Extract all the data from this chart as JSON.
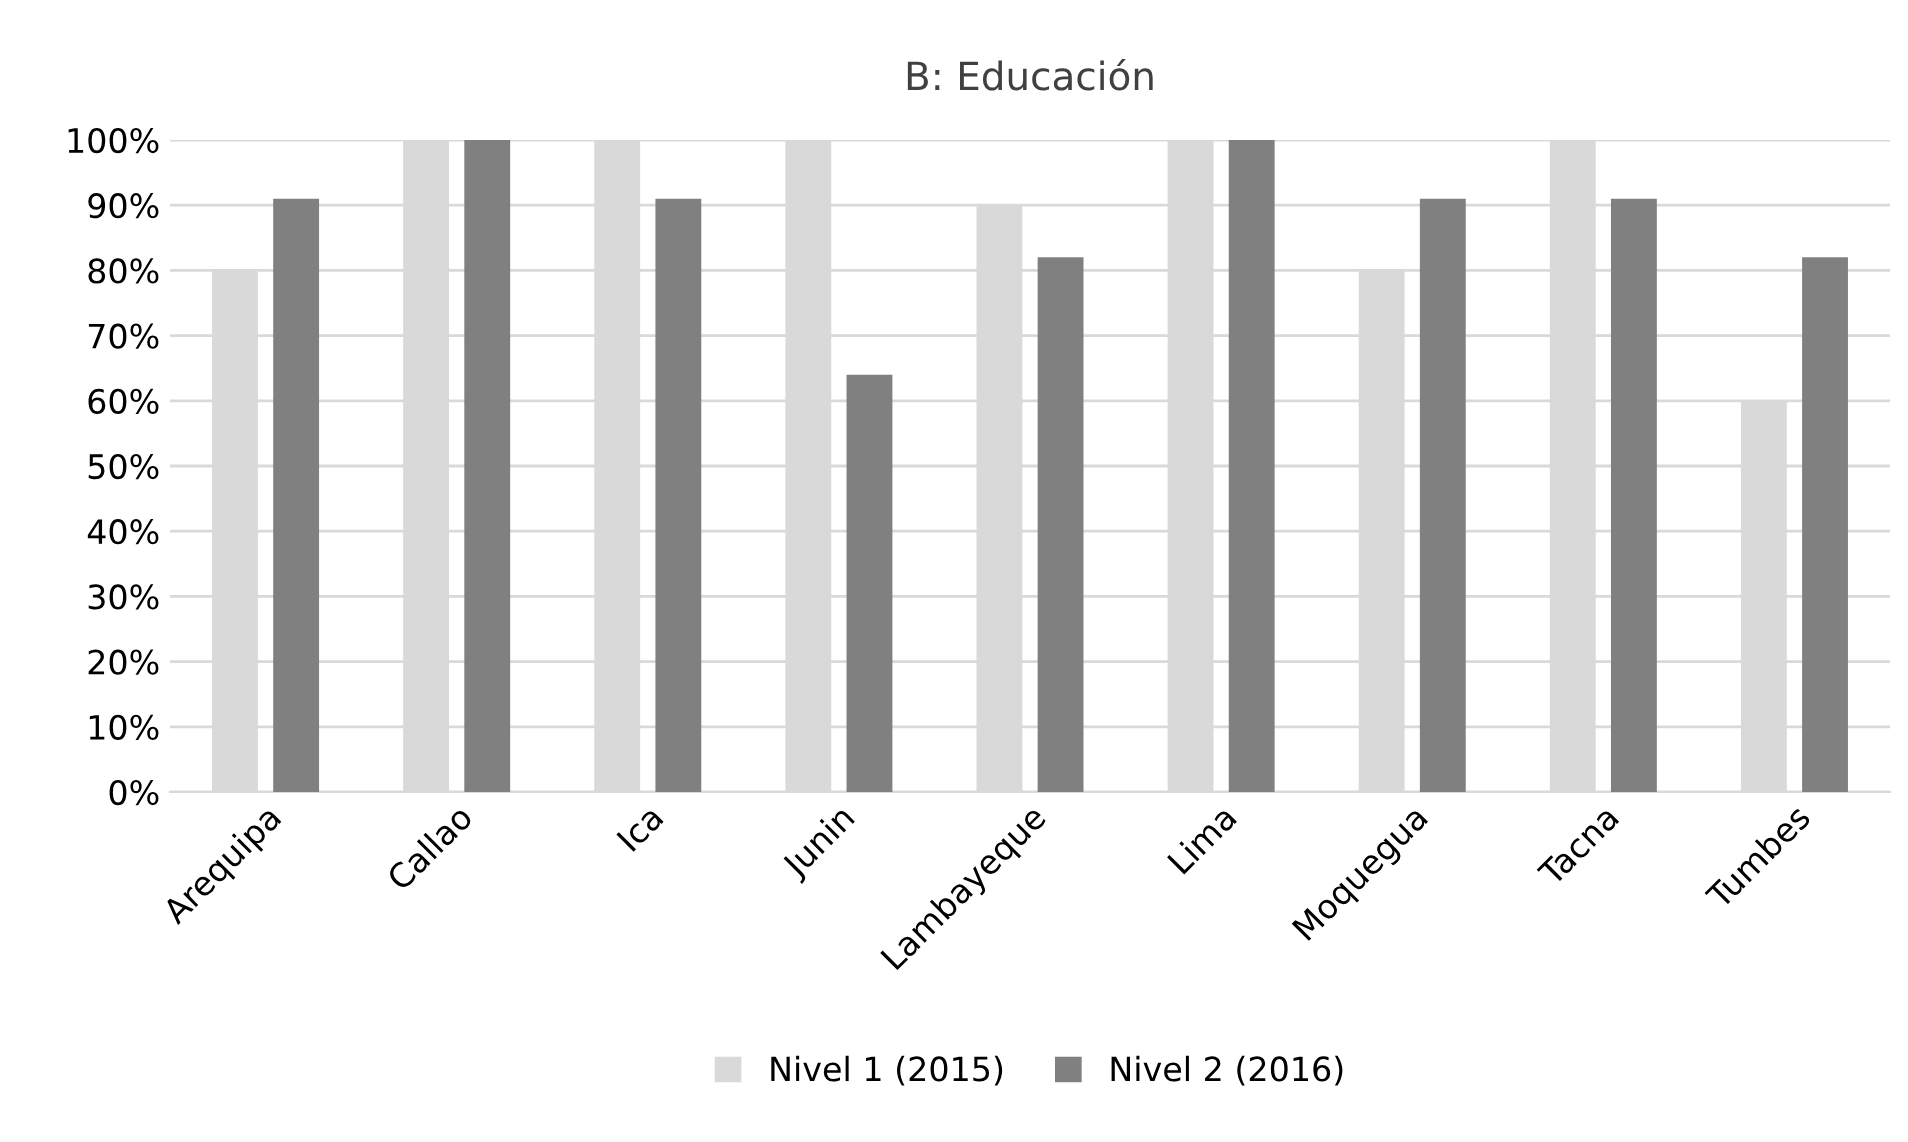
{
  "chart_data": {
    "type": "bar",
    "title": "B: Educación",
    "categories": [
      "Arequipa",
      "Callao",
      "Ica",
      "Junin",
      "Lambayeque",
      "Lima",
      "Moquegua",
      "Tacna",
      "Tumbes"
    ],
    "series": [
      {
        "name": "Nivel 1 (2015)",
        "color": "#d9d9d9",
        "values": [
          80,
          100,
          100,
          100,
          90,
          100,
          80,
          100,
          60
        ]
      },
      {
        "name": "Nivel 2 (2016)",
        "color": "#808080",
        "values": [
          91,
          100,
          91,
          64,
          82,
          100,
          91,
          91,
          82
        ]
      }
    ],
    "ylim": [
      0,
      100
    ],
    "yticks": [
      {
        "value": 0,
        "label": "0%"
      },
      {
        "value": 10,
        "label": "10%"
      },
      {
        "value": 20,
        "label": "20%"
      },
      {
        "value": 30,
        "label": "30%"
      },
      {
        "value": 40,
        "label": "40%"
      },
      {
        "value": 50,
        "label": "50%"
      },
      {
        "value": 60,
        "label": "60%"
      },
      {
        "value": 70,
        "label": "70%"
      },
      {
        "value": 80,
        "label": "80%"
      },
      {
        "value": 90,
        "label": "90%"
      },
      {
        "value": 100,
        "label": "100%"
      }
    ],
    "grid": "y",
    "legend": "bottom"
  }
}
